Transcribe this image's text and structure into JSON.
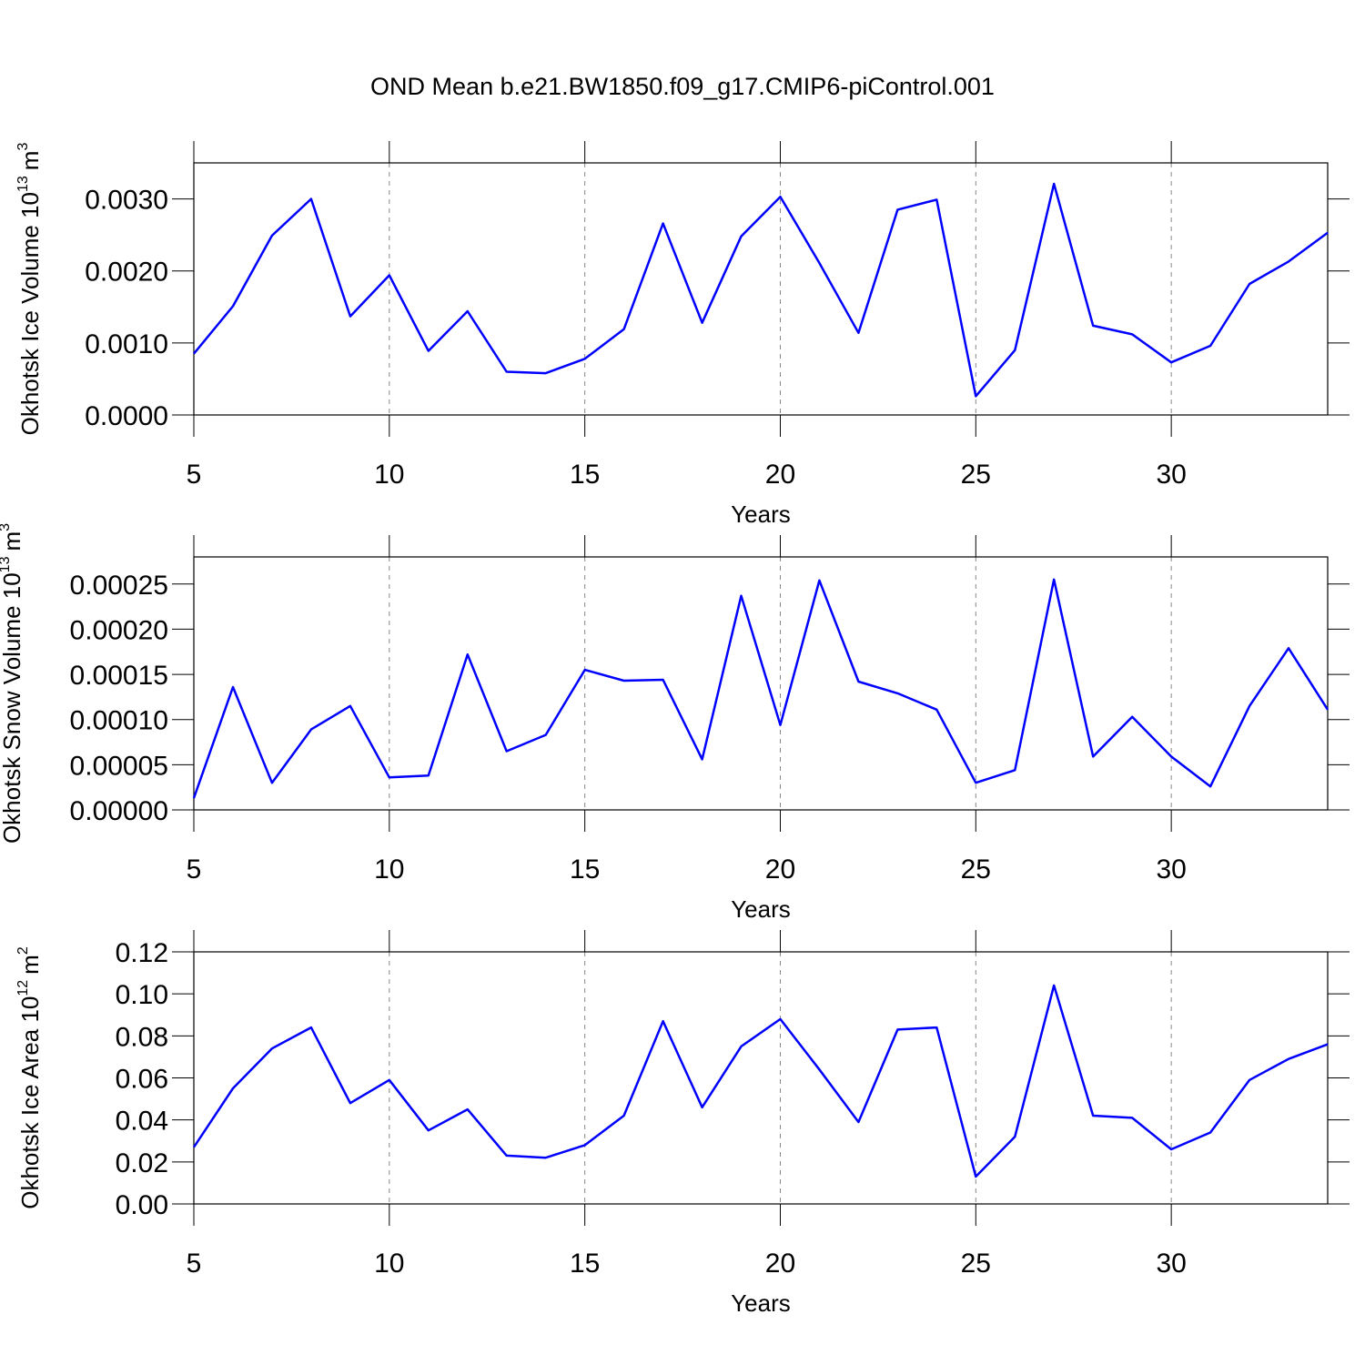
{
  "chart_data": [
    {
      "type": "line",
      "title": "OND Mean b.e21.BW1850.f09_g17.CMIP6-piControl.001",
      "ylabel": {
        "text": "Okhotsk Ice Volume 10",
        "exp": "13",
        "unit": "m",
        "unit_exp": "3"
      },
      "xlabel": "Years",
      "color": "#0000ff",
      "grid": true,
      "x": [
        5,
        6,
        7,
        8,
        9,
        10,
        11,
        12,
        13,
        14,
        15,
        16,
        17,
        18,
        19,
        20,
        21,
        22,
        23,
        24,
        25,
        26,
        27,
        28,
        29,
        30,
        31,
        32,
        33,
        34
      ],
      "values": [
        0.00085,
        0.00151,
        0.00249,
        0.003,
        0.00137,
        0.00194,
        0.00089,
        0.00144,
        0.0006,
        0.00058,
        0.00078,
        0.00119,
        0.00266,
        0.00128,
        0.00248,
        0.00303,
        0.00211,
        0.00114,
        0.00285,
        0.00299,
        0.00026,
        0.0009,
        0.00321,
        0.00124,
        0.00112,
        0.00073,
        0.00096,
        0.00182,
        0.00213,
        0.00253
      ],
      "xlim": [
        5,
        34
      ],
      "xticks": [
        5,
        10,
        15,
        20,
        25,
        30
      ],
      "ylim": [
        0,
        0.0035
      ],
      "yticks": [
        {
          "value": 0,
          "label": "0.0000"
        },
        {
          "value": 0.001,
          "label": "0.0010"
        },
        {
          "value": 0.002,
          "label": "0.0020"
        },
        {
          "value": 0.003,
          "label": "0.0030"
        }
      ]
    },
    {
      "type": "line",
      "ylabel": {
        "text": "Okhotsk Snow Volume 10",
        "exp": "13",
        "unit": "m",
        "unit_exp": "3"
      },
      "xlabel": "Years",
      "color": "#0000ff",
      "grid": true,
      "x": [
        5,
        6,
        7,
        8,
        9,
        10,
        11,
        12,
        13,
        14,
        15,
        16,
        17,
        18,
        19,
        20,
        21,
        22,
        23,
        24,
        25,
        26,
        27,
        28,
        29,
        30,
        31,
        32,
        33,
        34
      ],
      "values": [
        1.3e-05,
        0.000136,
        3e-05,
        8.9e-05,
        0.000115,
        3.6e-05,
        3.8e-05,
        0.000172,
        6.5e-05,
        8.3e-05,
        0.000155,
        0.000143,
        0.000144,
        5.6e-05,
        0.000237,
        9.4e-05,
        0.000254,
        0.000142,
        0.000129,
        0.000111,
        3e-05,
        4.4e-05,
        0.000255,
        5.9e-05,
        0.000103,
        5.9e-05,
        2.6e-05,
        0.000115,
        0.000179,
        0.000111
      ],
      "xlim": [
        5,
        34
      ],
      "xticks": [
        5,
        10,
        15,
        20,
        25,
        30
      ],
      "ylim": [
        0,
        0.00028
      ],
      "yticks": [
        {
          "value": 0,
          "label": "0.00000"
        },
        {
          "value": 5e-05,
          "label": "0.00005"
        },
        {
          "value": 0.0001,
          "label": "0.00010"
        },
        {
          "value": 0.00015,
          "label": "0.00015"
        },
        {
          "value": 0.0002,
          "label": "0.00020"
        },
        {
          "value": 0.00025,
          "label": "0.00025"
        }
      ]
    },
    {
      "type": "line",
      "ylabel": {
        "text": "Okhotsk Ice Area 10",
        "exp": "12",
        "unit": "m",
        "unit_exp": "2"
      },
      "xlabel": "Years",
      "color": "#0000ff",
      "grid": true,
      "x": [
        5,
        6,
        7,
        8,
        9,
        10,
        11,
        12,
        13,
        14,
        15,
        16,
        17,
        18,
        19,
        20,
        21,
        22,
        23,
        24,
        25,
        26,
        27,
        28,
        29,
        30,
        31,
        32,
        33,
        34
      ],
      "values": [
        0.027,
        0.055,
        0.074,
        0.084,
        0.048,
        0.059,
        0.035,
        0.045,
        0.023,
        0.022,
        0.028,
        0.042,
        0.087,
        0.046,
        0.075,
        0.088,
        0.064,
        0.039,
        0.083,
        0.084,
        0.013,
        0.032,
        0.104,
        0.042,
        0.041,
        0.026,
        0.034,
        0.059,
        0.069,
        0.076
      ],
      "xlim": [
        5,
        34
      ],
      "xticks": [
        5,
        10,
        15,
        20,
        25,
        30
      ],
      "ylim": [
        0,
        0.12
      ],
      "yticks": [
        {
          "value": 0,
          "label": "0.00"
        },
        {
          "value": 0.02,
          "label": "0.02"
        },
        {
          "value": 0.04,
          "label": "0.04"
        },
        {
          "value": 0.06,
          "label": "0.06"
        },
        {
          "value": 0.08,
          "label": "0.08"
        },
        {
          "value": 0.1,
          "label": "0.10"
        },
        {
          "value": 0.12,
          "label": "0.12"
        }
      ]
    }
  ]
}
